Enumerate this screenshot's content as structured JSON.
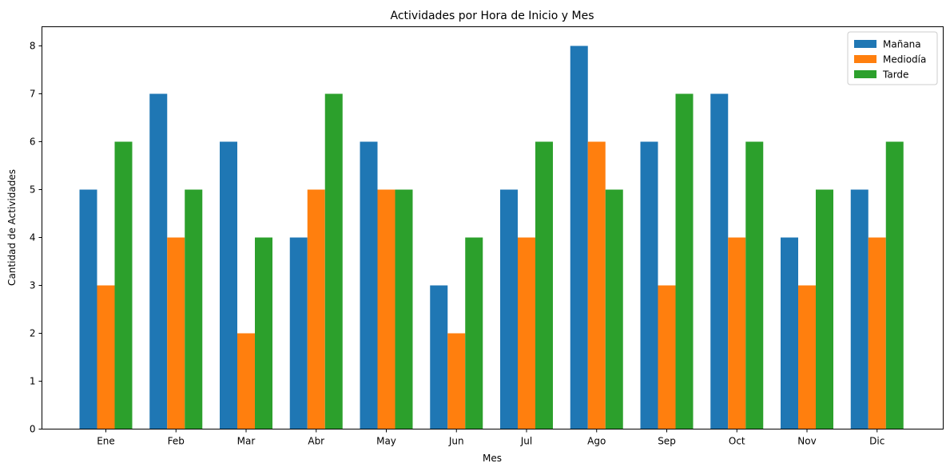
{
  "chart_data": {
    "type": "bar",
    "title": "Actividades por Hora de Inicio y Mes",
    "xlabel": "Mes",
    "ylabel": "Cantidad de Actividades",
    "categories": [
      "Ene",
      "Feb",
      "Mar",
      "Abr",
      "May",
      "Jun",
      "Jul",
      "Ago",
      "Sep",
      "Oct",
      "Nov",
      "Dic"
    ],
    "series": [
      {
        "name": "Mañana",
        "color": "#1f77b4",
        "values": [
          5,
          7,
          6,
          4,
          6,
          3,
          5,
          8,
          6,
          7,
          4,
          5
        ]
      },
      {
        "name": "Mediodía",
        "color": "#ff7f0e",
        "values": [
          3,
          4,
          2,
          5,
          5,
          2,
          4,
          6,
          3,
          4,
          3,
          4
        ]
      },
      {
        "name": "Tarde",
        "color": "#2ca02c",
        "values": [
          6,
          5,
          4,
          7,
          5,
          4,
          6,
          5,
          7,
          6,
          5,
          6
        ]
      }
    ],
    "yticks": [
      0,
      1,
      2,
      3,
      4,
      5,
      6,
      7,
      8
    ],
    "ylim": [
      0,
      8.4
    ],
    "grid": false,
    "legend_position": "top-right"
  }
}
